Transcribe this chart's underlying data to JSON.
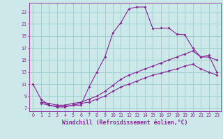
{
  "xlabel": "Windchill (Refroidissement éolien,°C)",
  "background_color": "#cce8e8",
  "grid_color": "#99cccc",
  "line_color": "#882299",
  "xlim": [
    -0.5,
    23.5
  ],
  "ylim": [
    6.5,
    24.5
  ],
  "xticks": [
    0,
    1,
    2,
    3,
    4,
    5,
    6,
    7,
    8,
    9,
    10,
    11,
    12,
    13,
    14,
    15,
    16,
    17,
    18,
    19,
    20,
    21,
    22,
    23
  ],
  "yticks": [
    7,
    9,
    11,
    13,
    15,
    17,
    19,
    21,
    23
  ],
  "line1_x": [
    0,
    1,
    2,
    3,
    4,
    5,
    6,
    7,
    8,
    9,
    10,
    11,
    12,
    13,
    14,
    15,
    16,
    17,
    18,
    19,
    20,
    21,
    22,
    23
  ],
  "line1_y": [
    11.0,
    8.5,
    7.5,
    7.2,
    7.2,
    7.5,
    7.5,
    10.5,
    13.0,
    15.5,
    19.5,
    21.2,
    23.5,
    23.8,
    23.8,
    20.2,
    20.3,
    20.3,
    19.3,
    19.2,
    17.0,
    15.5,
    15.5,
    15.0
  ],
  "line2_x": [
    1,
    2,
    3,
    4,
    5,
    6,
    7,
    8,
    9,
    10,
    11,
    12,
    13,
    14,
    15,
    16,
    17,
    18,
    19,
    20,
    21,
    22,
    23
  ],
  "line2_y": [
    8.0,
    7.8,
    7.5,
    7.5,
    7.8,
    8.0,
    8.5,
    9.0,
    9.8,
    10.8,
    11.8,
    12.5,
    13.0,
    13.5,
    14.0,
    14.5,
    15.0,
    15.5,
    16.0,
    16.5,
    15.5,
    15.8,
    13.0
  ],
  "line3_x": [
    1,
    2,
    3,
    4,
    5,
    6,
    7,
    8,
    9,
    10,
    11,
    12,
    13,
    14,
    15,
    16,
    17,
    18,
    19,
    20,
    21,
    22,
    23
  ],
  "line3_y": [
    7.8,
    7.5,
    7.3,
    7.3,
    7.5,
    7.8,
    8.0,
    8.5,
    9.0,
    9.8,
    10.5,
    11.0,
    11.5,
    12.0,
    12.5,
    12.8,
    13.2,
    13.5,
    14.0,
    14.3,
    13.5,
    13.0,
    12.5
  ],
  "tick_fontsize": 4.8,
  "label_fontsize": 5.8,
  "markersize": 2.0,
  "linewidth": 0.8
}
